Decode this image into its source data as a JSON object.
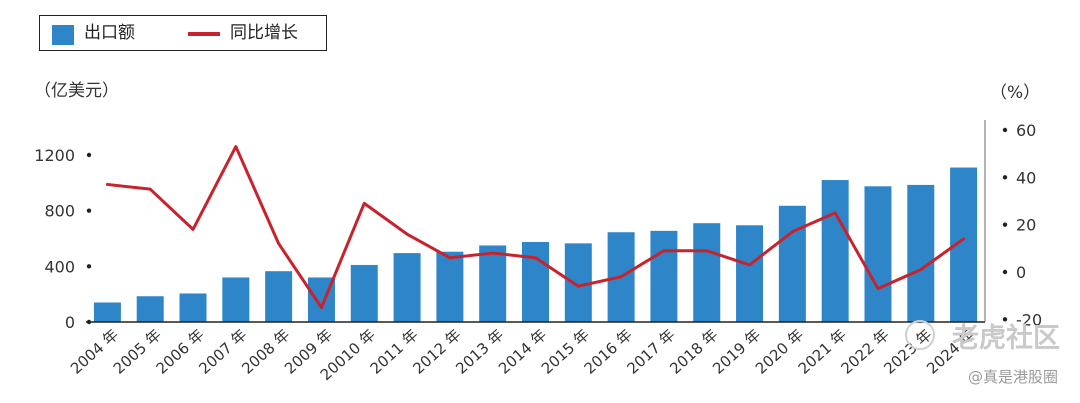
{
  "legend": {
    "bar_label": "出口额",
    "line_label": "同比增长"
  },
  "units": {
    "left": "（亿美元）",
    "right": "（%）"
  },
  "watermark": {
    "logo_text": "老虎社区",
    "sub_text": "@真是港股圈"
  },
  "colors": {
    "bar": "#2e86c8",
    "line": "#c8232c",
    "axis": "#222222"
  },
  "chart_data": {
    "type": "bar",
    "categories": [
      "2004 年",
      "2005 年",
      "2006 年",
      "2007 年",
      "2008 年",
      "2009 年",
      "20010 年",
      "2011 年",
      "2012 年",
      "2013 年",
      "2014 年",
      "2015 年",
      "2016 年",
      "2017 年",
      "2018 年",
      "2019 年",
      "2020 年",
      "2021 年",
      "2022 年",
      "2023 年",
      "2024 年"
    ],
    "series": [
      {
        "name": "出口额",
        "type": "bar",
        "axis": "left",
        "values": [
          140,
          185,
          205,
          320,
          365,
          320,
          410,
          495,
          505,
          550,
          575,
          565,
          645,
          655,
          710,
          695,
          835,
          1020,
          975,
          985,
          1110
        ]
      },
      {
        "name": "同比增长",
        "type": "line",
        "axis": "right",
        "values": [
          37,
          35,
          18,
          53,
          12,
          -15,
          29,
          16,
          6,
          8,
          6,
          -6,
          -2,
          9,
          9,
          3,
          17,
          25,
          -7,
          1,
          14
        ]
      }
    ],
    "left_axis": {
      "ticks": [
        0,
        400,
        800,
        1200
      ],
      "range": [
        0,
        1380
      ]
    },
    "right_axis": {
      "ticks": [
        -20,
        0,
        20,
        40,
        60
      ],
      "range": [
        -20,
        68
      ]
    },
    "xlabel": "",
    "ylabel": "",
    "grid": false,
    "legend_position": "top-left"
  }
}
